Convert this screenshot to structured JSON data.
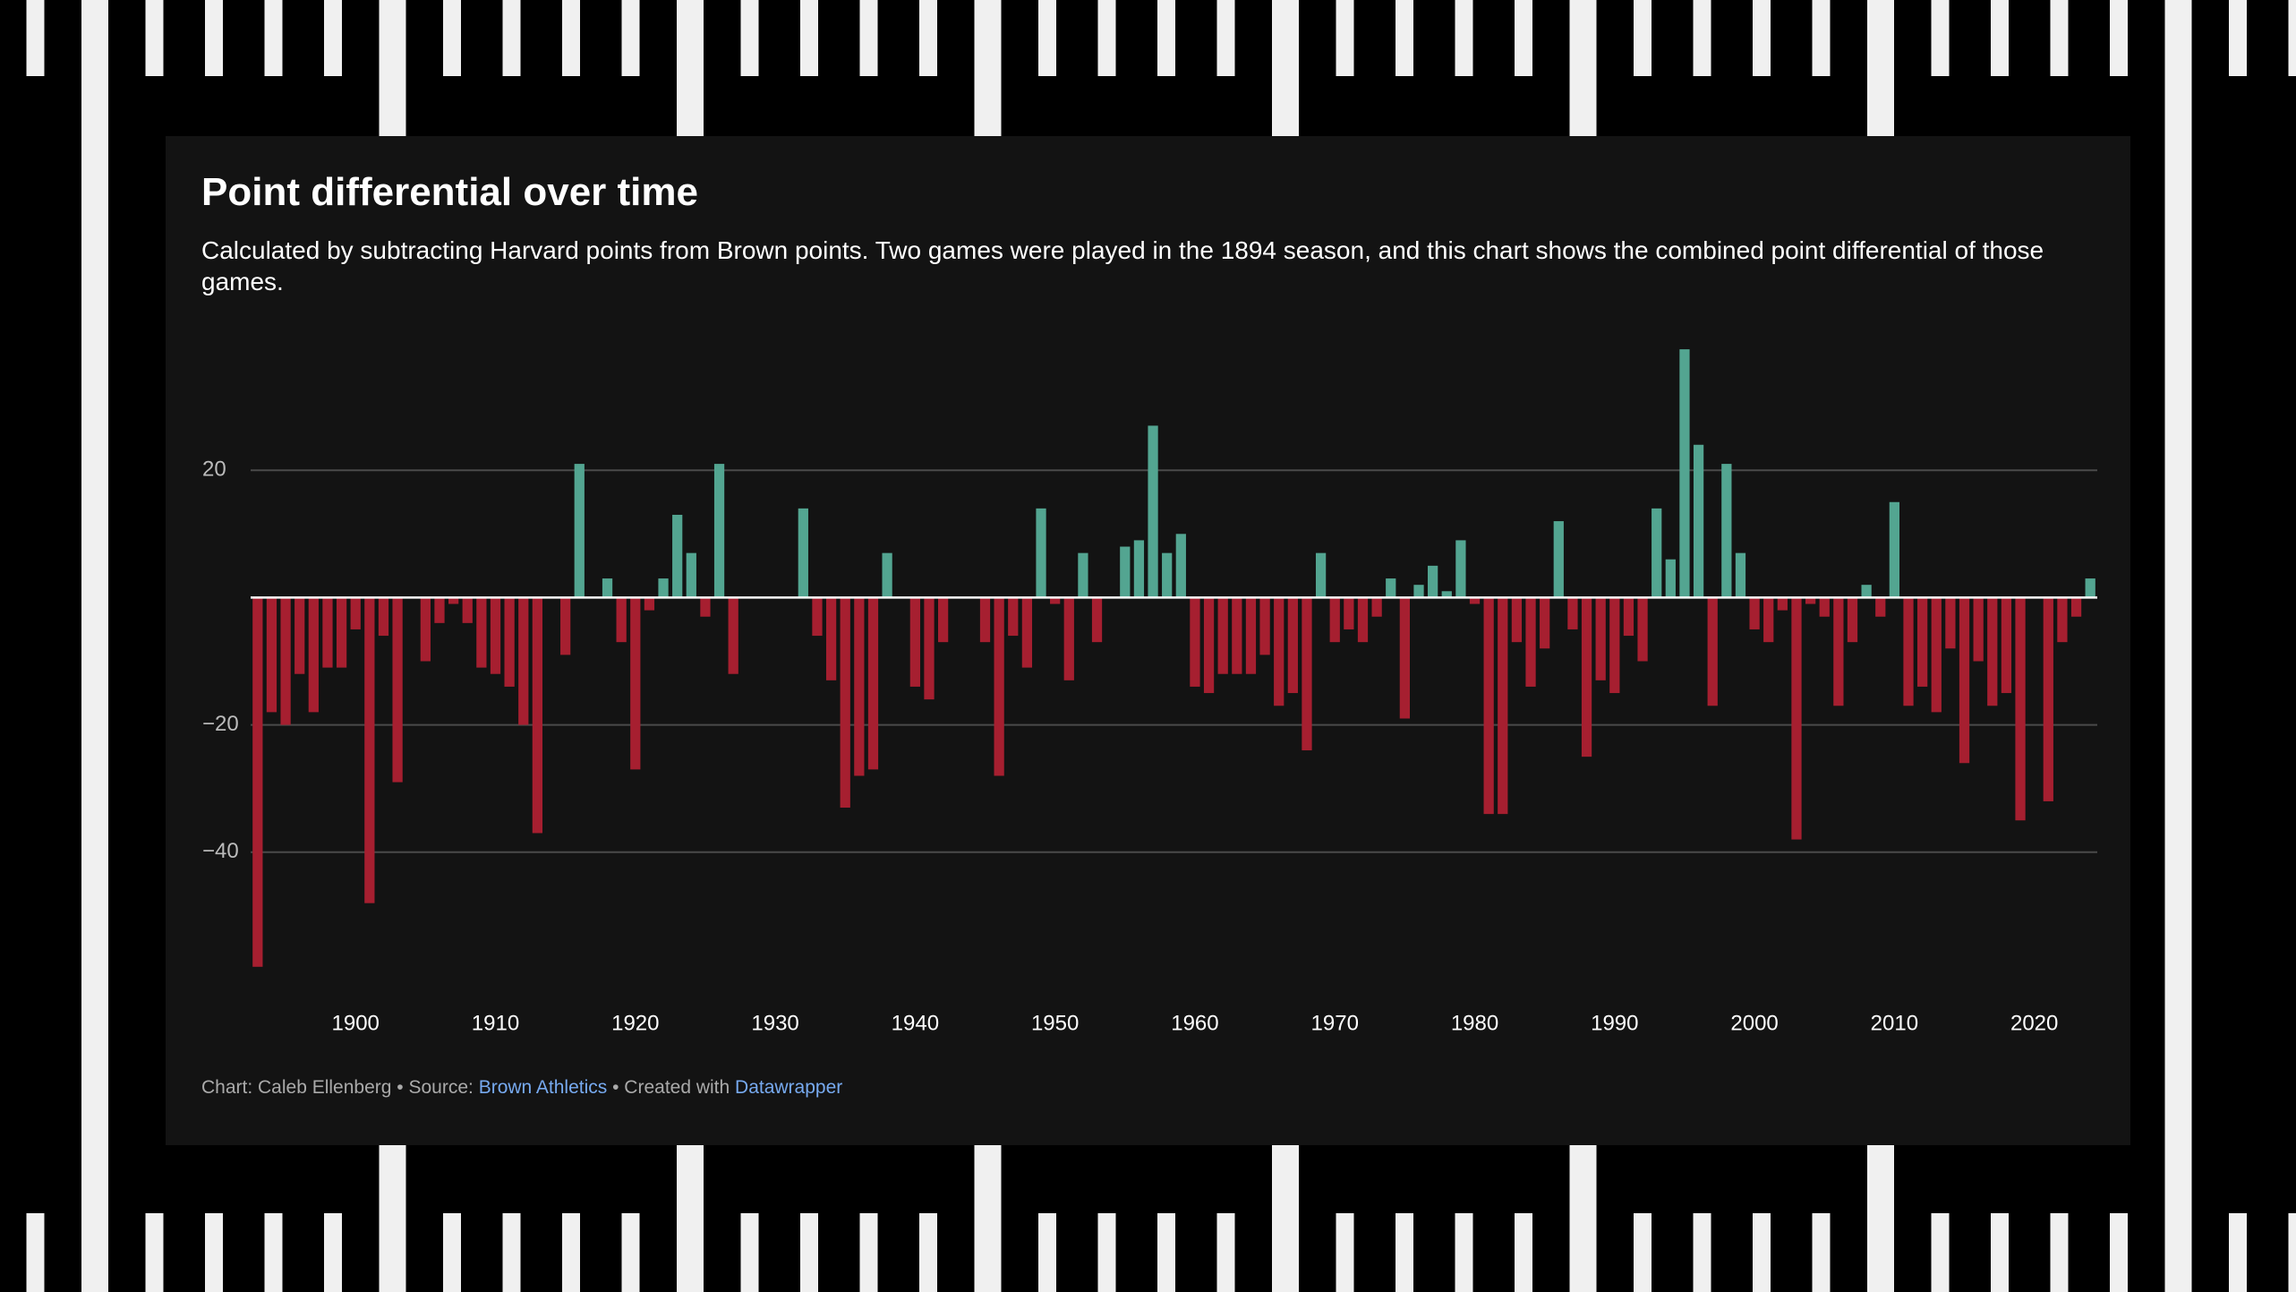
{
  "chart_data": {
    "type": "bar",
    "title": "Point differential over time",
    "subtitle": "Calculated by subtracting Harvard points from Brown points. Two games were played in the 1894 season, and this chart shows the combined point differential of those games.",
    "x": [
      1893,
      1894,
      1895,
      1896,
      1897,
      1898,
      1899,
      1900,
      1901,
      1902,
      1903,
      1904,
      1905,
      1906,
      1907,
      1908,
      1909,
      1910,
      1911,
      1912,
      1913,
      1914,
      1915,
      1916,
      1917,
      1918,
      1919,
      1920,
      1921,
      1922,
      1923,
      1924,
      1925,
      1926,
      1927,
      1928,
      1929,
      1930,
      1931,
      1932,
      1933,
      1934,
      1935,
      1936,
      1937,
      1938,
      1939,
      1940,
      1941,
      1942,
      1943,
      1944,
      1945,
      1946,
      1947,
      1948,
      1949,
      1950,
      1951,
      1952,
      1953,
      1954,
      1955,
      1956,
      1957,
      1958,
      1959,
      1960,
      1961,
      1962,
      1963,
      1964,
      1965,
      1966,
      1967,
      1968,
      1969,
      1970,
      1971,
      1972,
      1973,
      1974,
      1975,
      1976,
      1977,
      1978,
      1979,
      1980,
      1981,
      1982,
      1983,
      1984,
      1985,
      1986,
      1987,
      1988,
      1989,
      1990,
      1991,
      1992,
      1993,
      1994,
      1995,
      1996,
      1997,
      1998,
      1999,
      2000,
      2001,
      2002,
      2003,
      2004,
      2005,
      2006,
      2007,
      2008,
      2009,
      2010,
      2011,
      2012,
      2013,
      2014,
      2015,
      2016,
      2017,
      2018,
      2019,
      2020,
      2021,
      2022,
      2023,
      2024
    ],
    "values": [
      -58,
      -18,
      -20,
      -12,
      -18,
      -11,
      -11,
      -5,
      -48,
      -6,
      -29,
      null,
      -10,
      -4,
      -1,
      -4,
      -11,
      -12,
      -14,
      -20,
      -37,
      null,
      -9,
      21,
      null,
      3,
      -7,
      -27,
      -2,
      3,
      13,
      7,
      -3,
      21,
      -12,
      null,
      null,
      null,
      null,
      14,
      -6,
      -13,
      -33,
      -28,
      -27,
      7,
      null,
      -14,
      -16,
      -7,
      null,
      null,
      -7,
      -28,
      -6,
      -11,
      14,
      -1,
      -13,
      7,
      -7,
      null,
      8,
      9,
      27,
      7,
      10,
      -14,
      -15,
      -12,
      -12,
      -12,
      -9,
      -17,
      -15,
      -24,
      7,
      -7,
      -5,
      -7,
      -3,
      3,
      -19,
      2,
      5,
      1,
      9,
      -1,
      -34,
      -34,
      -7,
      -14,
      -8,
      12,
      -5,
      -25,
      -13,
      -15,
      -6,
      -10,
      14,
      6,
      39,
      24,
      -17,
      21,
      7,
      -5,
      -7,
      -2,
      -38,
      -1,
      -3,
      -17,
      -7,
      2,
      -3,
      15,
      -17,
      -14,
      -18,
      -8,
      -26,
      -10,
      -17,
      -15,
      -35,
      null,
      -32,
      -7,
      -3,
      3
    ],
    "positive_color": "#53a591",
    "negative_color": "#a61f30",
    "xlim": [
      1892.5,
      2024.5
    ],
    "xticks": [
      1900,
      1910,
      1920,
      1930,
      1940,
      1950,
      1960,
      1970,
      1980,
      1990,
      2000,
      2010,
      2020
    ],
    "ylim": [
      -60,
      40
    ],
    "yticks": [
      {
        "value": -40,
        "label": "−40"
      },
      {
        "value": -20,
        "label": "−20"
      },
      20
    ],
    "grid": true,
    "footer": {
      "byline": "Chart: Caleb Ellenberg • Source:",
      "source": "Brown Athletics",
      "tool_prefix": "• Created with",
      "tool": "Datawrapper"
    }
  }
}
